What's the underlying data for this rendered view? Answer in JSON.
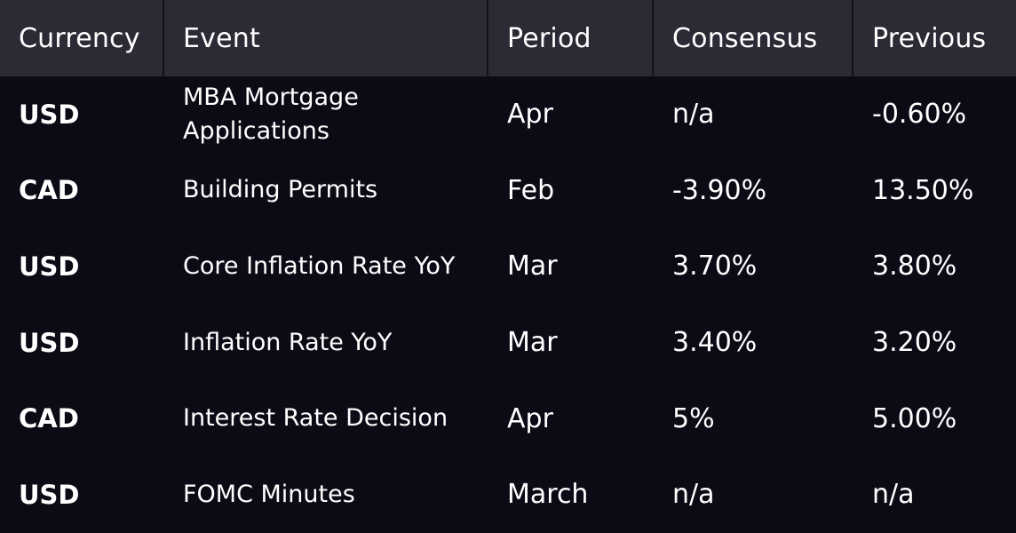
{
  "table": {
    "headers": {
      "currency": "Currency",
      "event": "Event",
      "period": "Period",
      "consensus": "Consensus",
      "previous": "Previous"
    },
    "rows": [
      {
        "currency": "USD",
        "event": "MBA Mortgage Applications",
        "period": "Apr",
        "consensus": "n/a",
        "previous": "-0.60%"
      },
      {
        "currency": "CAD",
        "event": "Building Permits",
        "period": "Feb",
        "consensus": "-3.90%",
        "previous": "13.50%"
      },
      {
        "currency": "USD",
        "event": "Core Inflation Rate YoY",
        "period": "Mar",
        "consensus": "3.70%",
        "previous": "3.80%"
      },
      {
        "currency": "USD",
        "event": "Inflation Rate YoY",
        "period": "Mar",
        "consensus": "3.40%",
        "previous": "3.20%"
      },
      {
        "currency": "CAD",
        "event": "Interest Rate Decision",
        "period": "Apr",
        "consensus": "5%",
        "previous": "5.00%"
      },
      {
        "currency": "USD",
        "event": "FOMC Minutes",
        "period": "March",
        "consensus": "n/a",
        "previous": "n/a"
      }
    ]
  },
  "colors": {
    "background": "#0b0b16",
    "header_background": "#2a2b35",
    "text": "#ffffff"
  }
}
